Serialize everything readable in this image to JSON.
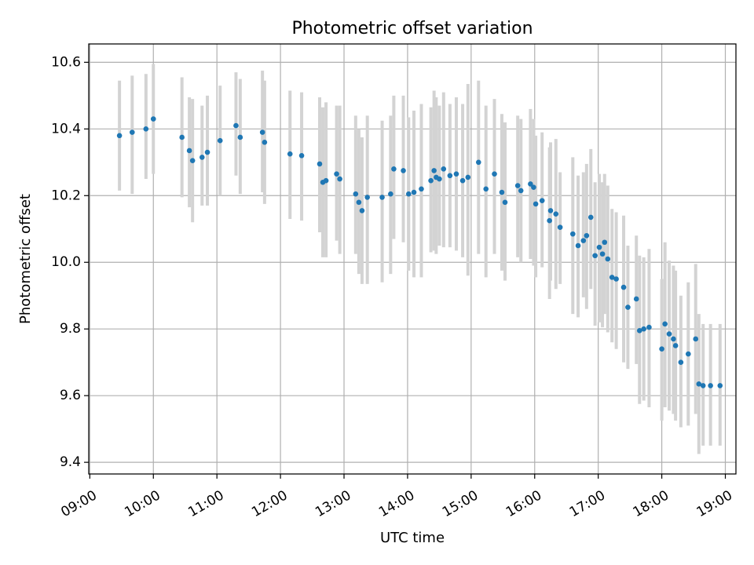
{
  "chart_data": {
    "type": "scatter",
    "title": "Photometric offset variation",
    "xlabel": "UTC time",
    "ylabel": "Photometric offset",
    "xlim": [
      "08:59",
      "19:10"
    ],
    "ylim": [
      9.365,
      10.655
    ],
    "x_ticks": [
      "09:00",
      "10:00",
      "11:00",
      "12:00",
      "13:00",
      "14:00",
      "15:00",
      "16:00",
      "17:00",
      "18:00",
      "19:00"
    ],
    "y_ticks": [
      "9.4",
      "9.6",
      "9.8",
      "10.0",
      "10.2",
      "10.4",
      "10.6"
    ],
    "grid": true,
    "legend": "none",
    "colors": {
      "points": "#1f77b4",
      "error_bars": "#d3d3d3",
      "grid": "#b0b0b0",
      "axes": "#000000"
    },
    "series": [
      {
        "x": [
          "09:28",
          "09:40",
          "09:53",
          "10:00",
          "10:27",
          "10:34",
          "10:37",
          "10:46",
          "10:51",
          "11:03",
          "11:18",
          "11:22",
          "11:43",
          "11:45",
          "12:09",
          "12:20",
          "12:37",
          "12:40",
          "12:43",
          "12:53",
          "12:56",
          "13:11",
          "13:14",
          "13:17",
          "13:22",
          "13:36",
          "13:44",
          "13:47",
          "13:56",
          "14:01",
          "14:06",
          "14:13",
          "14:22",
          "14:25",
          "14:27",
          "14:30",
          "14:34",
          "14:40",
          "14:46",
          "14:52",
          "14:57",
          "15:07",
          "15:14",
          "15:22",
          "15:29",
          "15:32",
          "15:44",
          "15:47",
          "15:56",
          "15:59",
          "16:01",
          "16:07",
          "16:14",
          "16:15",
          "16:20",
          "16:24",
          "16:36",
          "16:41",
          "16:46",
          "16:49",
          "16:53",
          "16:57",
          "17:01",
          "17:04",
          "17:06",
          "17:09",
          "17:13",
          "17:17",
          "17:24",
          "17:28",
          "17:36",
          "17:39",
          "17:43",
          "17:48",
          "18:00",
          "18:03",
          "18:07",
          "18:11",
          "18:13",
          "18:18",
          "18:25",
          "18:32",
          "18:35",
          "18:39",
          "18:46",
          "18:55"
        ],
        "y": [
          10.38,
          10.39,
          10.4,
          10.43,
          10.375,
          10.335,
          10.305,
          10.315,
          10.33,
          10.365,
          10.41,
          10.375,
          10.39,
          10.36,
          10.325,
          10.32,
          10.295,
          10.24,
          10.245,
          10.265,
          10.25,
          10.205,
          10.18,
          10.155,
          10.195,
          10.195,
          10.205,
          10.28,
          10.275,
          10.205,
          10.21,
          10.22,
          10.245,
          10.275,
          10.255,
          10.25,
          10.28,
          10.26,
          10.265,
          10.245,
          10.255,
          10.3,
          10.22,
          10.265,
          10.21,
          10.18,
          10.23,
          10.215,
          10.235,
          10.225,
          10.175,
          10.185,
          10.125,
          10.155,
          10.145,
          10.105,
          10.085,
          10.05,
          10.065,
          10.08,
          10.135,
          10.02,
          10.045,
          10.025,
          10.06,
          10.01,
          9.955,
          9.95,
          9.925,
          9.865,
          9.89,
          9.795,
          9.8,
          9.805,
          9.74,
          9.815,
          9.785,
          9.77,
          9.75,
          9.7,
          9.725,
          9.77,
          9.635,
          9.63,
          9.63,
          9.63
        ],
        "error_low": [
          10.215,
          10.205,
          10.25,
          10.265,
          10.195,
          10.165,
          10.12,
          10.17,
          10.17,
          10.2,
          10.26,
          10.205,
          10.21,
          10.175,
          10.13,
          10.125,
          10.09,
          10.015,
          10.015,
          10.065,
          10.025,
          10.025,
          9.965,
          9.935,
          9.935,
          9.94,
          9.965,
          10.07,
          10.06,
          9.975,
          9.955,
          9.955,
          10.03,
          10.035,
          10.025,
          10.05,
          10.045,
          10.045,
          10.035,
          10.015,
          9.96,
          10.025,
          9.955,
          10.025,
          9.975,
          9.945,
          10.015,
          10.0,
          10.01,
          9.99,
          9.955,
          9.985,
          9.89,
          9.945,
          9.92,
          9.935,
          9.845,
          9.835,
          9.895,
          9.86,
          9.92,
          9.81,
          9.82,
          9.805,
          9.845,
          9.79,
          9.76,
          9.74,
          9.7,
          9.68,
          9.695,
          9.575,
          9.585,
          9.565,
          9.525,
          9.565,
          9.555,
          9.545,
          9.525,
          9.505,
          9.51,
          9.545,
          9.425,
          9.45,
          9.45,
          9.45
        ],
        "error_high": [
          10.545,
          10.56,
          10.565,
          10.595,
          10.555,
          10.495,
          10.49,
          10.47,
          10.5,
          10.53,
          10.57,
          10.55,
          10.575,
          10.545,
          10.515,
          10.51,
          10.495,
          10.465,
          10.48,
          10.47,
          10.47,
          10.44,
          10.4,
          10.375,
          10.44,
          10.425,
          10.44,
          10.5,
          10.5,
          10.435,
          10.455,
          10.475,
          10.465,
          10.515,
          10.495,
          10.47,
          10.51,
          10.475,
          10.495,
          10.475,
          10.535,
          10.545,
          10.47,
          10.49,
          10.445,
          10.42,
          10.44,
          10.43,
          10.46,
          10.43,
          10.38,
          10.39,
          10.345,
          10.36,
          10.37,
          10.27,
          10.315,
          10.26,
          10.27,
          10.295,
          10.34,
          10.24,
          10.265,
          10.24,
          10.265,
          10.23,
          10.16,
          10.15,
          10.14,
          10.05,
          10.08,
          10.02,
          10.015,
          10.04,
          9.95,
          10.06,
          10.005,
          9.99,
          9.975,
          9.9,
          9.94,
          9.995,
          9.845,
          9.815,
          9.815,
          9.815
        ]
      }
    ]
  }
}
